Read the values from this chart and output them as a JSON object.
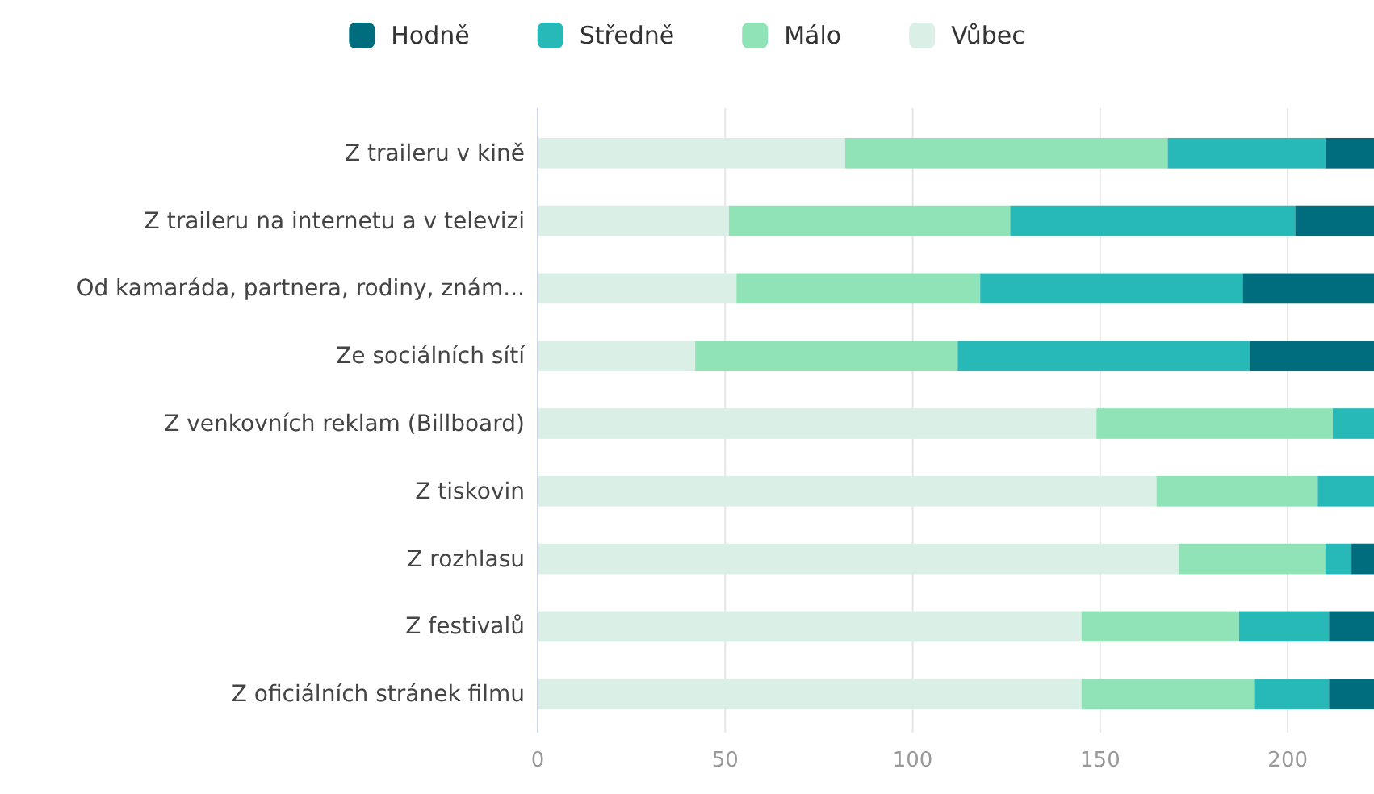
{
  "chart_data": {
    "type": "bar",
    "orientation": "horizontal",
    "stacked": true,
    "categories": [
      "Z traileru v kině",
      "Z traileru na internetu a v televizi",
      "Od kamaráda, partnera, rodiny, znám...",
      "Ze sociálních sítí",
      "Z venkovních reklam (Billboard)",
      "Z tiskovin",
      "Z rozhlasu",
      "Z festivalů",
      "Z oficiálních stránek filmu"
    ],
    "series": [
      {
        "name": "Vůbec",
        "color": "#daf0e6",
        "values": [
          82,
          51,
          53,
          42,
          149,
          165,
          171,
          145,
          145
        ]
      },
      {
        "name": "Málo",
        "color": "#90e3b7",
        "values": [
          86,
          75,
          65,
          70,
          63,
          43,
          39,
          42,
          46
        ]
      },
      {
        "name": "Středně",
        "color": "#27b8b8",
        "values": [
          42,
          76,
          70,
          78,
          11,
          15,
          7,
          24,
          20
        ]
      },
      {
        "name": "Hodně",
        "color": "#006d7e",
        "values": [
          13,
          21,
          35,
          33,
          null,
          null,
          6,
          12,
          12
        ]
      }
    ],
    "xlim": [
      0,
      223
    ],
    "xticks": [
      0,
      50,
      100,
      150,
      200
    ],
    "grid": "x",
    "legend": "top"
  }
}
